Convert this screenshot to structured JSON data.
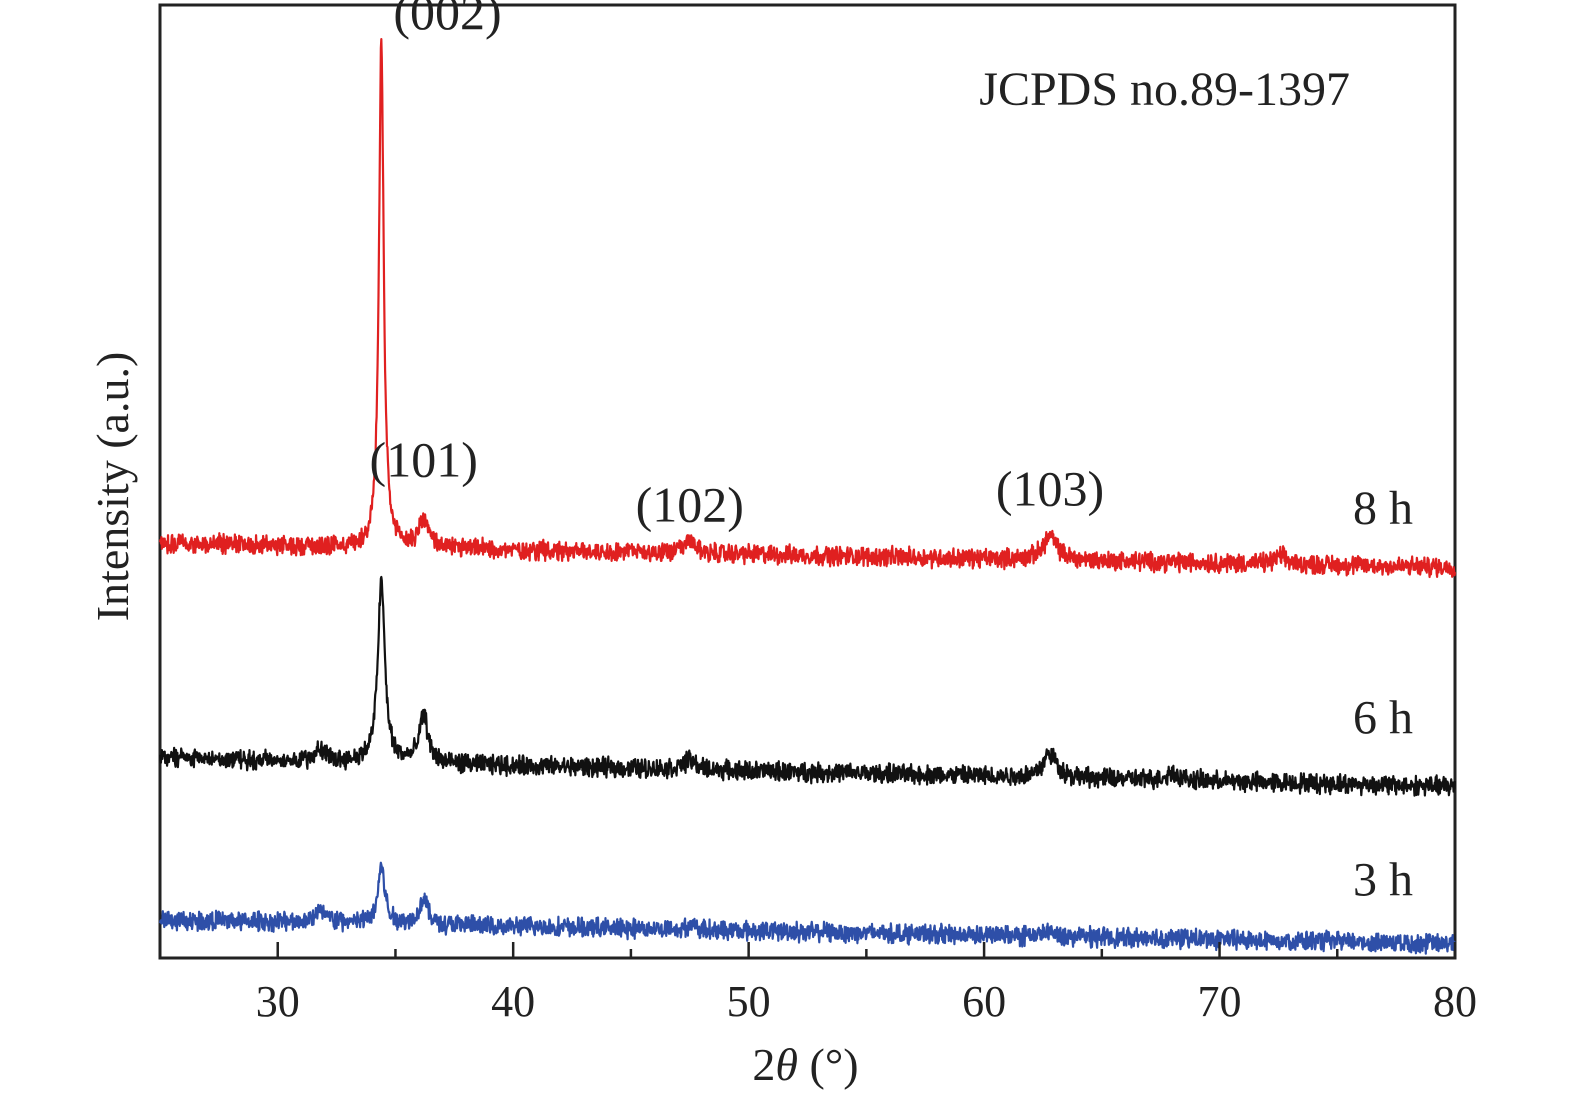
{
  "chart_data": {
    "type": "line",
    "xlabel_prefix": "2",
    "xlabel_symbol": "θ",
    "xlabel_suffix": " (°)",
    "ylabel": "Intensity (a.u.)",
    "xlim": [
      25,
      80
    ],
    "ylim": [
      0,
      1
    ],
    "xticks": [
      30,
      40,
      50,
      60,
      70,
      80
    ],
    "yticks_shown": false,
    "grid": false,
    "reference_text": "JCPDS no.89-1397",
    "series": [
      {
        "name": "8 h",
        "color": "#e02020",
        "offset": 0.42,
        "baseline_start": 0.015,
        "baseline_end": -0.01,
        "noise": 0.012,
        "peaks": [
          {
            "x": 31.8,
            "h": 0.0,
            "w": 0.3
          },
          {
            "x": 34.4,
            "h": 0.53,
            "w": 0.12
          },
          {
            "x": 36.2,
            "h": 0.03,
            "w": 0.25
          },
          {
            "x": 47.5,
            "h": 0.012,
            "w": 0.3
          },
          {
            "x": 62.8,
            "h": 0.025,
            "w": 0.35
          },
          {
            "x": 72.6,
            "h": 0.008,
            "w": 0.3
          }
        ]
      },
      {
        "name": "6 h",
        "color": "#111111",
        "offset": 0.2,
        "baseline_start": 0.01,
        "baseline_end": -0.02,
        "noise": 0.012,
        "peaks": [
          {
            "x": 31.8,
            "h": 0.012,
            "w": 0.3
          },
          {
            "x": 34.4,
            "h": 0.19,
            "w": 0.18
          },
          {
            "x": 36.2,
            "h": 0.05,
            "w": 0.22
          },
          {
            "x": 47.5,
            "h": 0.01,
            "w": 0.3
          },
          {
            "x": 62.8,
            "h": 0.025,
            "w": 0.35
          },
          {
            "x": 68.0,
            "h": 0.008,
            "w": 0.3
          }
        ]
      },
      {
        "name": "3 h",
        "color": "#2e4fa8",
        "offset": 0.03,
        "baseline_start": 0.01,
        "baseline_end": -0.015,
        "noise": 0.012,
        "peaks": [
          {
            "x": 31.8,
            "h": 0.012,
            "w": 0.35
          },
          {
            "x": 34.4,
            "h": 0.06,
            "w": 0.18
          },
          {
            "x": 36.2,
            "h": 0.027,
            "w": 0.22
          },
          {
            "x": 47.5,
            "h": 0.004,
            "w": 0.3
          },
          {
            "x": 62.8,
            "h": 0.004,
            "w": 0.35
          }
        ]
      }
    ],
    "annotations": [
      {
        "text": "(002)",
        "x": 34.4,
        "y": 0.975
      },
      {
        "text": "(101)",
        "x": 36.2,
        "y": 0.505
      },
      {
        "text": "(102)",
        "x": 47.5,
        "y": 0.458
      },
      {
        "text": "(103)",
        "x": 62.8,
        "y": 0.475
      }
    ]
  }
}
